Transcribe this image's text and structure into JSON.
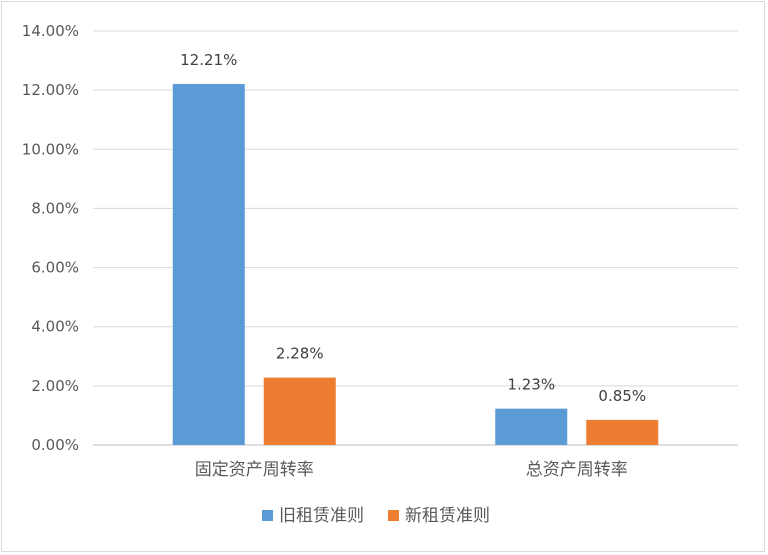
{
  "chart_data": {
    "type": "bar",
    "categories": [
      "固定资产周转率",
      "总资产周转率"
    ],
    "series": [
      {
        "name": "旧租赁准则",
        "values": [
          12.21,
          1.23
        ],
        "labels": [
          "12.21%",
          "1.23%"
        ],
        "color": "#5b9bd5"
      },
      {
        "name": "新租赁准则",
        "values": [
          2.28,
          0.85
        ],
        "labels": [
          "2.28%",
          "0.85%"
        ],
        "color": "#ed7d31"
      }
    ],
    "ylim": [
      0,
      14
    ],
    "yticks": [
      "0.00%",
      "2.00%",
      "4.00%",
      "6.00%",
      "8.00%",
      "10.00%",
      "12.00%",
      "14.00%"
    ],
    "grid": true,
    "legend": "bottom"
  }
}
